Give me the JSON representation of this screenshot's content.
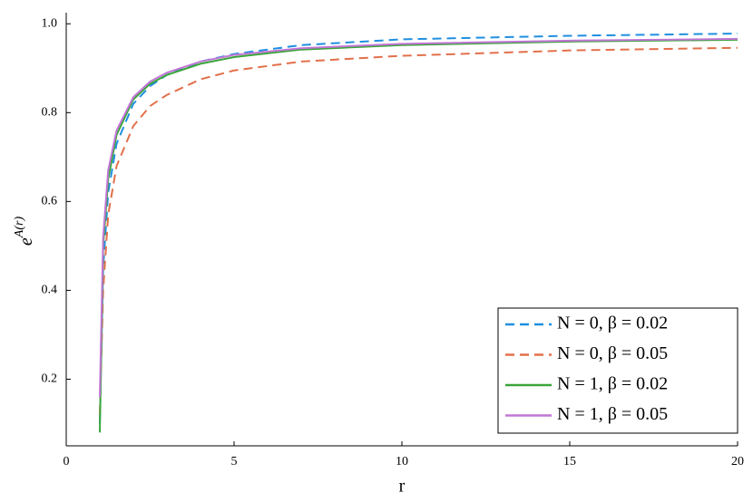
{
  "chart_data": {
    "type": "line",
    "x_label": "r",
    "y_label_base": "e",
    "y_label_sup": "A(r)",
    "x": [
      1,
      1.1,
      1.25,
      1.5,
      2,
      2.5,
      3,
      4,
      5,
      7,
      10,
      15,
      20
    ],
    "series": [
      {
        "name": "N = 0, β = 0.02",
        "color": "#1f8fe0",
        "dash": true,
        "values": [
          0.1,
          0.45,
          0.62,
          0.73,
          0.82,
          0.86,
          0.885,
          0.915,
          0.932,
          0.952,
          0.965,
          0.973,
          0.978
        ]
      },
      {
        "name": "N = 0, β = 0.05",
        "color": "#e2704a",
        "dash": true,
        "values": [
          0.12,
          0.4,
          0.57,
          0.68,
          0.77,
          0.815,
          0.84,
          0.875,
          0.895,
          0.915,
          0.928,
          0.94,
          0.946
        ]
      },
      {
        "name": "N = 1, β = 0.02",
        "color": "#3aa53a",
        "dash": false,
        "values": [
          0.08,
          0.5,
          0.65,
          0.75,
          0.83,
          0.865,
          0.885,
          0.91,
          0.925,
          0.942,
          0.952,
          0.96,
          0.964
        ]
      },
      {
        "name": "N = 1, β = 0.05",
        "color": "#c276d6",
        "dash": false,
        "values": [
          0.16,
          0.52,
          0.67,
          0.76,
          0.835,
          0.87,
          0.89,
          0.915,
          0.93,
          0.945,
          0.955,
          0.962,
          0.966
        ]
      }
    ],
    "xlim": [
      0,
      20
    ],
    "xticks": [
      0,
      5,
      10,
      15,
      20
    ],
    "ylim": [
      0.05,
      1.025
    ],
    "yticks": [
      0.2,
      0.4,
      0.6,
      0.8,
      {
        "value": 1,
        "label": "1.0"
      }
    ],
    "grid": false,
    "legend": "bottom-right"
  }
}
